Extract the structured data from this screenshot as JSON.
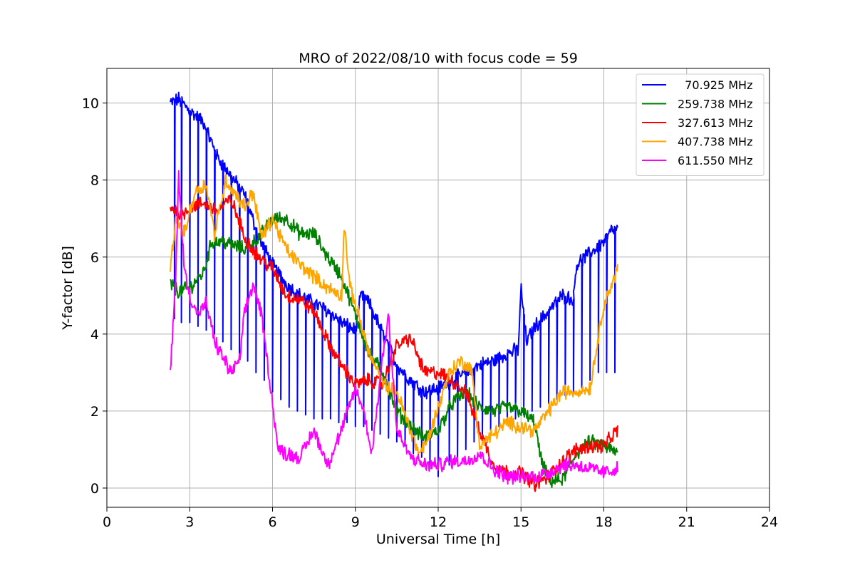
{
  "chart_data": {
    "type": "line",
    "title": "MRO of 2022/08/10 with focus code = 59",
    "xlabel": "Universal Time [h]",
    "ylabel": "Y-factor [dB]",
    "xlim": [
      0,
      24
    ],
    "ylim": [
      -0.5,
      10.9
    ],
    "xticks": [
      0,
      3,
      6,
      9,
      12,
      15,
      18,
      21,
      24
    ],
    "yticks": [
      0,
      2,
      4,
      6,
      8,
      10
    ],
    "grid": true,
    "legend_position": "top-right",
    "series": [
      {
        "name": "  70.925 MHz",
        "color": "#0000ff",
        "points": [
          [
            2.3,
            10.0
          ],
          [
            2.6,
            10.1
          ],
          [
            3.0,
            9.8
          ],
          [
            3.5,
            9.5
          ],
          [
            4.0,
            8.6
          ],
          [
            4.5,
            8.1
          ],
          [
            5.0,
            7.6
          ],
          [
            5.5,
            6.5
          ],
          [
            6.0,
            5.8
          ],
          [
            6.5,
            5.3
          ],
          [
            7.0,
            5.0
          ],
          [
            7.5,
            4.8
          ],
          [
            8.0,
            4.6
          ],
          [
            8.5,
            4.3
          ],
          [
            9.0,
            4.1
          ],
          [
            9.2,
            5.0
          ],
          [
            9.5,
            4.8
          ],
          [
            10.0,
            4.0
          ],
          [
            10.5,
            3.2
          ],
          [
            11.0,
            2.8
          ],
          [
            11.5,
            2.5
          ],
          [
            12.0,
            2.6
          ],
          [
            12.5,
            2.8
          ],
          [
            13.0,
            3.0
          ],
          [
            13.5,
            3.2
          ],
          [
            14.0,
            3.3
          ],
          [
            14.5,
            3.5
          ],
          [
            14.9,
            3.6
          ],
          [
            15.0,
            5.2
          ],
          [
            15.2,
            3.8
          ],
          [
            15.5,
            4.2
          ],
          [
            16.0,
            4.6
          ],
          [
            16.5,
            5.0
          ],
          [
            16.9,
            4.9
          ],
          [
            17.0,
            5.8
          ],
          [
            17.5,
            6.1
          ],
          [
            18.0,
            6.4
          ],
          [
            18.3,
            6.7
          ],
          [
            18.5,
            6.7
          ]
        ],
        "dips": [
          [
            2.45,
            4.4
          ],
          [
            2.7,
            4.3
          ],
          [
            3.0,
            4.3
          ],
          [
            3.3,
            4.2
          ],
          [
            3.6,
            4.1
          ],
          [
            3.9,
            4.0
          ],
          [
            4.2,
            3.8
          ],
          [
            4.5,
            3.6
          ],
          [
            4.8,
            3.5
          ],
          [
            5.1,
            3.3
          ],
          [
            5.4,
            3.0
          ],
          [
            5.7,
            2.8
          ],
          [
            6.0,
            2.5
          ],
          [
            6.3,
            2.3
          ],
          [
            6.6,
            2.1
          ],
          [
            6.9,
            2.0
          ],
          [
            7.2,
            1.9
          ],
          [
            7.5,
            1.8
          ],
          [
            7.8,
            1.8
          ],
          [
            8.1,
            1.8
          ],
          [
            8.4,
            1.7
          ],
          [
            8.7,
            1.7
          ],
          [
            9.0,
            1.6
          ],
          [
            9.3,
            1.6
          ],
          [
            9.6,
            1.5
          ],
          [
            9.9,
            1.4
          ],
          [
            10.2,
            1.3
          ],
          [
            10.5,
            1.2
          ],
          [
            10.8,
            1.1
          ],
          [
            11.1,
            0.9
          ],
          [
            11.4,
            0.8
          ],
          [
            11.7,
            0.5
          ],
          [
            12.0,
            0.3
          ],
          [
            12.4,
            0.6
          ],
          [
            12.7,
            0.8
          ],
          [
            13.0,
            1.0
          ],
          [
            13.3,
            1.2
          ],
          [
            13.6,
            1.4
          ],
          [
            13.9,
            1.5
          ],
          [
            14.2,
            1.6
          ],
          [
            14.5,
            1.7
          ],
          [
            14.8,
            1.8
          ],
          [
            15.1,
            1.9
          ],
          [
            15.4,
            2.0
          ],
          [
            15.7,
            2.1
          ],
          [
            16.0,
            2.2
          ],
          [
            16.3,
            2.3
          ],
          [
            16.6,
            2.4
          ],
          [
            16.9,
            2.5
          ],
          [
            17.2,
            2.6
          ],
          [
            17.5,
            2.8
          ],
          [
            17.8,
            3.0
          ],
          [
            18.1,
            3.0
          ],
          [
            18.4,
            3.0
          ]
        ]
      },
      {
        "name": "259.738 MHz",
        "color": "#008000",
        "points": [
          [
            2.3,
            5.3
          ],
          [
            2.6,
            5.1
          ],
          [
            3.0,
            5.2
          ],
          [
            3.5,
            5.6
          ],
          [
            3.8,
            6.4
          ],
          [
            4.2,
            6.4
          ],
          [
            4.6,
            6.3
          ],
          [
            5.0,
            6.2
          ],
          [
            5.5,
            6.5
          ],
          [
            6.0,
            7.0
          ],
          [
            6.5,
            7.0
          ],
          [
            7.0,
            6.6
          ],
          [
            7.5,
            6.6
          ],
          [
            8.0,
            6.0
          ],
          [
            8.5,
            5.5
          ],
          [
            9.0,
            4.5
          ],
          [
            9.5,
            3.5
          ],
          [
            10.0,
            3.0
          ],
          [
            10.5,
            2.0
          ],
          [
            11.0,
            1.6
          ],
          [
            11.5,
            1.3
          ],
          [
            12.0,
            1.5
          ],
          [
            12.5,
            2.2
          ],
          [
            13.0,
            2.5
          ],
          [
            13.5,
            2.1
          ],
          [
            14.0,
            2.0
          ],
          [
            14.5,
            2.1
          ],
          [
            15.0,
            2.0
          ],
          [
            15.5,
            1.7
          ],
          [
            15.7,
            0.8
          ],
          [
            16.0,
            0.2
          ],
          [
            16.5,
            0.2
          ],
          [
            17.0,
            0.9
          ],
          [
            17.5,
            1.2
          ],
          [
            18.0,
            1.1
          ],
          [
            18.5,
            0.9
          ]
        ]
      },
      {
        "name": "327.613 MHz",
        "color": "#ff0000",
        "points": [
          [
            2.3,
            7.3
          ],
          [
            2.7,
            7.1
          ],
          [
            3.0,
            7.3
          ],
          [
            3.5,
            7.4
          ],
          [
            4.0,
            7.2
          ],
          [
            4.5,
            7.5
          ],
          [
            5.0,
            6.5
          ],
          [
            5.5,
            6.0
          ],
          [
            6.0,
            5.7
          ],
          [
            6.5,
            5.0
          ],
          [
            7.0,
            4.9
          ],
          [
            7.5,
            4.6
          ],
          [
            8.0,
            3.8
          ],
          [
            8.5,
            3.2
          ],
          [
            9.0,
            2.7
          ],
          [
            9.5,
            2.8
          ],
          [
            10.0,
            2.7
          ],
          [
            10.5,
            3.7
          ],
          [
            11.0,
            3.9
          ],
          [
            11.5,
            3.0
          ],
          [
            12.0,
            3.0
          ],
          [
            12.5,
            2.8
          ],
          [
            13.0,
            2.5
          ],
          [
            13.5,
            1.5
          ],
          [
            14.0,
            0.6
          ],
          [
            14.5,
            0.4
          ],
          [
            15.0,
            0.4
          ],
          [
            15.5,
            0.1
          ],
          [
            16.0,
            0.3
          ],
          [
            16.5,
            0.7
          ],
          [
            17.0,
            1.0
          ],
          [
            17.5,
            1.1
          ],
          [
            18.0,
            1.1
          ],
          [
            18.5,
            1.5
          ]
        ]
      },
      {
        "name": "407.738 MHz",
        "color": "#ffa500",
        "points": [
          [
            2.3,
            5.7
          ],
          [
            2.5,
            7.0
          ],
          [
            2.8,
            6.6
          ],
          [
            3.2,
            7.7
          ],
          [
            3.6,
            7.9
          ],
          [
            3.9,
            6.6
          ],
          [
            4.3,
            8.0
          ],
          [
            4.7,
            7.6
          ],
          [
            5.0,
            7.3
          ],
          [
            5.3,
            7.7
          ],
          [
            5.6,
            6.5
          ],
          [
            6.0,
            7.0
          ],
          [
            6.5,
            6.2
          ],
          [
            7.0,
            5.8
          ],
          [
            7.5,
            5.5
          ],
          [
            8.0,
            5.2
          ],
          [
            8.5,
            5.0
          ],
          [
            8.6,
            6.9
          ],
          [
            8.8,
            5.2
          ],
          [
            9.0,
            4.8
          ],
          [
            9.5,
            3.5
          ],
          [
            10.0,
            2.7
          ],
          [
            10.5,
            2.5
          ],
          [
            11.0,
            1.5
          ],
          [
            11.3,
            0.9
          ],
          [
            11.6,
            1.2
          ],
          [
            12.0,
            2.1
          ],
          [
            12.4,
            3.0
          ],
          [
            12.8,
            3.3
          ],
          [
            13.2,
            3.1
          ],
          [
            13.5,
            1.1
          ],
          [
            14.0,
            1.4
          ],
          [
            14.5,
            1.7
          ],
          [
            15.0,
            1.6
          ],
          [
            15.5,
            1.5
          ],
          [
            16.0,
            2.0
          ],
          [
            16.5,
            2.5
          ],
          [
            17.0,
            2.5
          ],
          [
            17.5,
            2.6
          ],
          [
            18.0,
            4.8
          ],
          [
            18.3,
            5.3
          ],
          [
            18.5,
            5.7
          ]
        ]
      },
      {
        "name": "611.550 MHz",
        "color": "#ff00ff",
        "points": [
          [
            2.3,
            3.0
          ],
          [
            2.5,
            5.5
          ],
          [
            2.6,
            8.2
          ],
          [
            2.8,
            5.7
          ],
          [
            3.0,
            5.0
          ],
          [
            3.3,
            4.5
          ],
          [
            3.6,
            4.8
          ],
          [
            3.9,
            3.8
          ],
          [
            4.2,
            3.4
          ],
          [
            4.5,
            3.0
          ],
          [
            4.8,
            3.3
          ],
          [
            5.0,
            4.6
          ],
          [
            5.3,
            5.3
          ],
          [
            5.6,
            4.5
          ],
          [
            5.9,
            2.8
          ],
          [
            6.2,
            1.0
          ],
          [
            6.5,
            0.9
          ],
          [
            7.0,
            0.8
          ],
          [
            7.5,
            1.5
          ],
          [
            8.0,
            0.6
          ],
          [
            8.5,
            1.5
          ],
          [
            9.0,
            2.6
          ],
          [
            9.3,
            2.0
          ],
          [
            9.6,
            0.9
          ],
          [
            10.0,
            3.5
          ],
          [
            10.2,
            4.5
          ],
          [
            10.5,
            1.5
          ],
          [
            11.0,
            0.8
          ],
          [
            11.5,
            0.6
          ],
          [
            12.0,
            0.6
          ],
          [
            12.5,
            0.7
          ],
          [
            13.0,
            0.7
          ],
          [
            13.5,
            0.9
          ],
          [
            14.0,
            0.5
          ],
          [
            14.5,
            0.3
          ],
          [
            15.0,
            0.3
          ],
          [
            15.5,
            0.3
          ],
          [
            16.0,
            0.4
          ],
          [
            16.5,
            0.6
          ],
          [
            17.0,
            0.6
          ],
          [
            17.5,
            0.5
          ],
          [
            18.0,
            0.4
          ],
          [
            18.5,
            0.5
          ]
        ]
      }
    ]
  }
}
